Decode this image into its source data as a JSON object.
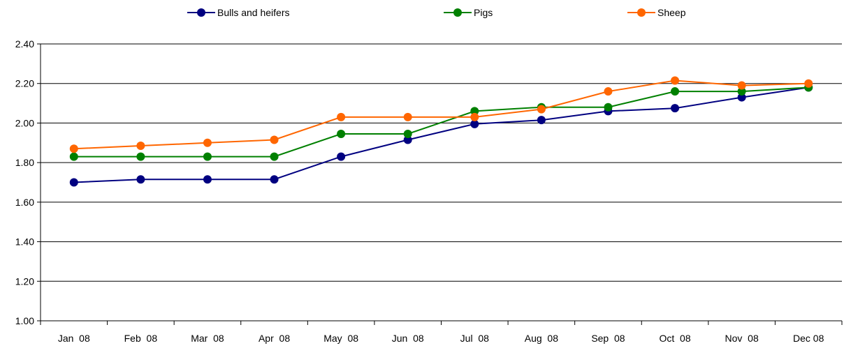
{
  "chart_data": {
    "type": "line",
    "categories": [
      "Jan  08",
      "Feb  08",
      "Mar  08",
      "Apr  08",
      "May  08",
      "Jun  08",
      "Jul  08",
      "Aug  08",
      "Sep  08",
      "Oct  08",
      "Nov  08",
      "Dec 08"
    ],
    "series": [
      {
        "name": "Bulls and heifers",
        "color": "#000080",
        "values": [
          1.7,
          1.715,
          1.715,
          1.715,
          1.83,
          1.915,
          1.995,
          2.015,
          2.06,
          2.075,
          2.13,
          2.18
        ]
      },
      {
        "name": "Pigs",
        "color": "#008000",
        "values": [
          1.83,
          1.83,
          1.83,
          1.83,
          1.945,
          1.945,
          2.06,
          2.08,
          2.08,
          2.16,
          2.16,
          2.18
        ]
      },
      {
        "name": "Sheep",
        "color": "#ff6600",
        "values": [
          1.87,
          1.885,
          1.9,
          1.915,
          2.03,
          2.03,
          2.03,
          2.07,
          2.16,
          2.215,
          2.19,
          2.2
        ]
      }
    ],
    "title": "",
    "xlabel": "",
    "ylabel": "",
    "ylim": [
      1.0,
      2.4
    ],
    "yticks": [
      "1.00",
      "1.20",
      "1.40",
      "1.60",
      "1.80",
      "2.00",
      "2.20",
      "2.40"
    ],
    "grid": true,
    "legend": "top"
  }
}
